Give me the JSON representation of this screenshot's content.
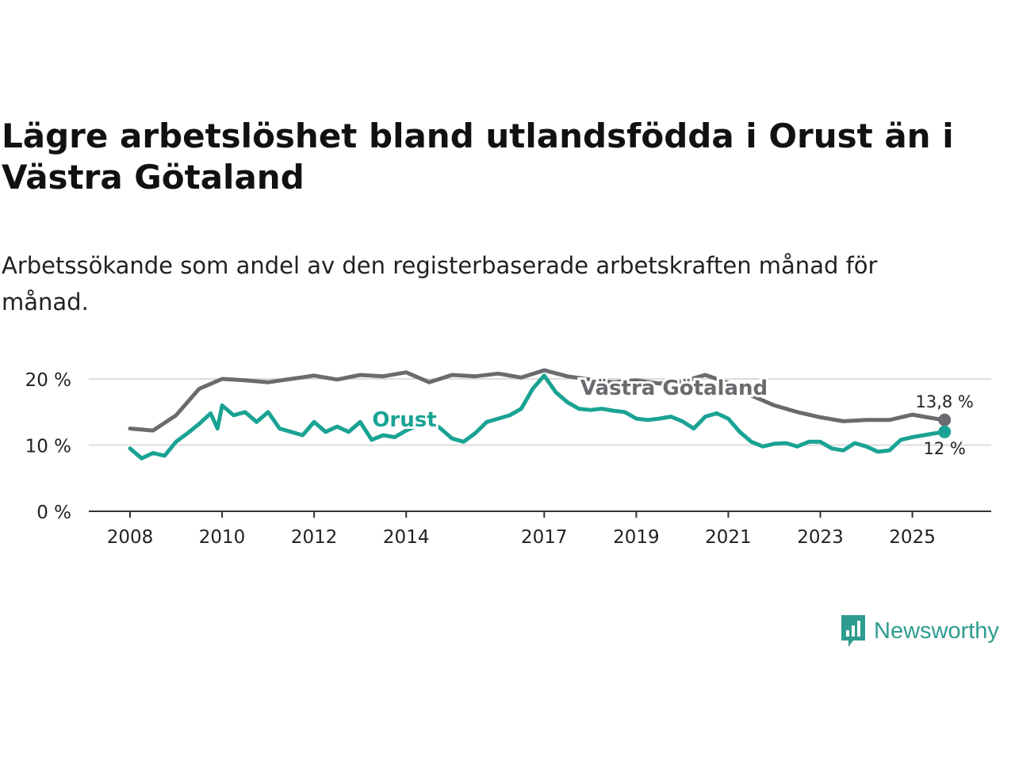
{
  "title": "Lägre arbetslöshet bland utlandsfödda i Orust än i Västra Götaland",
  "subtitle": "Arbetssökande som andel av den registerbaserade arbetskraften månad för månad.",
  "brand": {
    "name": "Newsworthy",
    "color": "#2e9c8f",
    "icon": "newsworthy-logo-icon"
  },
  "chart_data": {
    "type": "line",
    "title": "Lägre arbetslöshet bland utlandsfödda i Orust än i Västra Götaland",
    "xlabel": "",
    "ylabel": "",
    "ylim": [
      0,
      22
    ],
    "xlim": [
      2008,
      2025.8
    ],
    "grid": true,
    "y_ticks": [
      {
        "value": 0,
        "label": "0 %"
      },
      {
        "value": 10,
        "label": "10 %"
      },
      {
        "value": 20,
        "label": "20 %"
      }
    ],
    "x_ticks": [
      {
        "value": 2008,
        "label": "2008"
      },
      {
        "value": 2010,
        "label": "2010"
      },
      {
        "value": 2012,
        "label": "2012"
      },
      {
        "value": 2014,
        "label": "2014"
      },
      {
        "value": 2017,
        "label": "2017"
      },
      {
        "value": 2019,
        "label": "2019"
      },
      {
        "value": 2021,
        "label": "2021"
      },
      {
        "value": 2023,
        "label": "2023"
      },
      {
        "value": 2025,
        "label": "2025"
      }
    ],
    "series": [
      {
        "name": "Västra Götaland",
        "label": "Västra Götaland",
        "color": "#6b6a6f",
        "end_label": "13,8 %",
        "x": [
          2008.0,
          2008.5,
          2009.0,
          2009.5,
          2010.0,
          2010.5,
          2011.0,
          2011.5,
          2012.0,
          2012.5,
          2013.0,
          2013.5,
          2014.0,
          2014.5,
          2015.0,
          2015.5,
          2016.0,
          2016.5,
          2017.0,
          2017.5,
          2018.0,
          2018.5,
          2019.0,
          2019.5,
          2020.0,
          2020.5,
          2021.0,
          2021.5,
          2022.0,
          2022.5,
          2023.0,
          2023.5,
          2024.0,
          2024.5,
          2025.0,
          2025.5,
          2025.7
        ],
        "values": [
          12.5,
          12.2,
          14.5,
          18.5,
          20.0,
          19.8,
          19.5,
          20.0,
          20.5,
          19.9,
          20.6,
          20.4,
          21.0,
          19.5,
          20.6,
          20.4,
          20.8,
          20.2,
          21.3,
          20.4,
          19.9,
          19.5,
          19.8,
          19.3,
          19.6,
          20.6,
          19.4,
          17.5,
          16.0,
          15.0,
          14.2,
          13.6,
          13.8,
          13.8,
          14.6,
          14.0,
          13.8
        ]
      },
      {
        "name": "Orust",
        "label": "Orust",
        "color": "#1aa394",
        "end_label": "12 %",
        "x": [
          2008.0,
          2008.25,
          2008.5,
          2008.75,
          2009.0,
          2009.25,
          2009.5,
          2009.75,
          2009.9,
          2010.0,
          2010.25,
          2010.5,
          2010.75,
          2011.0,
          2011.25,
          2011.5,
          2011.75,
          2012.0,
          2012.25,
          2012.5,
          2012.75,
          2013.0,
          2013.25,
          2013.5,
          2013.75,
          2014.0,
          2014.25,
          2014.5,
          2014.75,
          2015.0,
          2015.25,
          2015.5,
          2015.75,
          2016.0,
          2016.25,
          2016.5,
          2016.75,
          2017.0,
          2017.25,
          2017.5,
          2017.75,
          2018.0,
          2018.25,
          2018.5,
          2018.75,
          2019.0,
          2019.25,
          2019.5,
          2019.75,
          2020.0,
          2020.25,
          2020.5,
          2020.75,
          2021.0,
          2021.25,
          2021.5,
          2021.75,
          2022.0,
          2022.25,
          2022.5,
          2022.75,
          2023.0,
          2023.25,
          2023.5,
          2023.75,
          2024.0,
          2024.25,
          2024.5,
          2024.75,
          2025.0,
          2025.25,
          2025.5,
          2025.7
        ],
        "values": [
          9.5,
          8.0,
          8.8,
          8.4,
          10.5,
          11.8,
          13.2,
          14.8,
          12.5,
          16.0,
          14.5,
          15.0,
          13.5,
          15.0,
          12.5,
          12.0,
          11.5,
          13.5,
          12.0,
          12.8,
          12.0,
          13.5,
          10.8,
          11.5,
          11.2,
          12.2,
          13.0,
          13.8,
          12.5,
          11.0,
          10.5,
          11.8,
          13.5,
          14.0,
          14.5,
          15.5,
          18.5,
          20.5,
          18.0,
          16.5,
          15.5,
          15.3,
          15.5,
          15.2,
          15.0,
          14.0,
          13.8,
          14.0,
          14.3,
          13.6,
          12.5,
          14.3,
          14.8,
          14.0,
          12.0,
          10.5,
          9.8,
          10.2,
          10.3,
          9.8,
          10.5,
          10.5,
          9.5,
          9.2,
          10.3,
          9.8,
          9.0,
          9.2,
          10.8,
          11.2,
          11.5,
          11.8,
          12.0
        ]
      }
    ]
  }
}
